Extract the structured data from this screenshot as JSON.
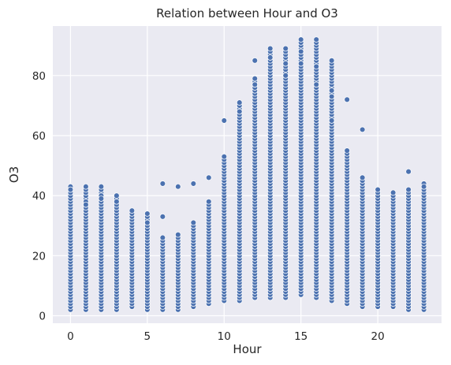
{
  "chart_data": {
    "type": "scatter",
    "title": "Relation between Hour and O3",
    "xlabel": "Hour",
    "ylabel": "O3",
    "xlim": [
      -1.15,
      24.15
    ],
    "ylim": [
      -2.5,
      96.5
    ],
    "xticks": [
      0,
      5,
      10,
      15,
      20
    ],
    "yticks": [
      0,
      20,
      40,
      60,
      80
    ],
    "grid": true,
    "marker_color": "#4c72b0",
    "background_color": "#eaeaf2",
    "columns": [
      {
        "hour": 0,
        "min": 2,
        "max": 43,
        "extra": [
          42
        ]
      },
      {
        "hour": 1,
        "min": 2,
        "max": 43,
        "extra": [
          38,
          37
        ]
      },
      {
        "hour": 2,
        "min": 2,
        "max": 43,
        "extra": [
          40,
          39
        ]
      },
      {
        "hour": 3,
        "min": 2,
        "max": 40,
        "extra": [
          38
        ]
      },
      {
        "hour": 4,
        "min": 3,
        "max": 35,
        "extra": []
      },
      {
        "hour": 5,
        "min": 2,
        "max": 34,
        "extra": [
          31
        ]
      },
      {
        "hour": 6,
        "min": 2,
        "max": 26,
        "extra": [
          44,
          33
        ]
      },
      {
        "hour": 7,
        "min": 2,
        "max": 27,
        "extra": [
          43
        ]
      },
      {
        "hour": 8,
        "min": 3,
        "max": 31,
        "extra": [
          44
        ]
      },
      {
        "hour": 9,
        "min": 4,
        "max": 38,
        "extra": [
          46
        ]
      },
      {
        "hour": 10,
        "min": 5,
        "max": 53,
        "extra": [
          65
        ]
      },
      {
        "hour": 11,
        "min": 5,
        "max": 71,
        "extra": [
          68
        ]
      },
      {
        "hour": 12,
        "min": 6,
        "max": 79,
        "extra": [
          85,
          77
        ]
      },
      {
        "hour": 13,
        "min": 6,
        "max": 89,
        "extra": [
          86
        ]
      },
      {
        "hour": 14,
        "min": 6,
        "max": 89,
        "extra": [
          84,
          80
        ]
      },
      {
        "hour": 15,
        "min": 7,
        "max": 92,
        "extra": [
          88,
          84
        ]
      },
      {
        "hour": 16,
        "min": 6,
        "max": 92,
        "extra": [
          83,
          77
        ]
      },
      {
        "hour": 17,
        "min": 5,
        "max": 85,
        "extra": [
          75,
          73,
          65
        ]
      },
      {
        "hour": 18,
        "min": 4,
        "max": 55,
        "extra": [
          72
        ]
      },
      {
        "hour": 19,
        "min": 3,
        "max": 46,
        "extra": [
          62
        ]
      },
      {
        "hour": 20,
        "min": 3,
        "max": 42,
        "extra": []
      },
      {
        "hour": 21,
        "min": 3,
        "max": 41,
        "extra": []
      },
      {
        "hour": 22,
        "min": 2,
        "max": 42,
        "extra": [
          48
        ]
      },
      {
        "hour": 23,
        "min": 2,
        "max": 44,
        "extra": [
          43
        ]
      }
    ]
  }
}
